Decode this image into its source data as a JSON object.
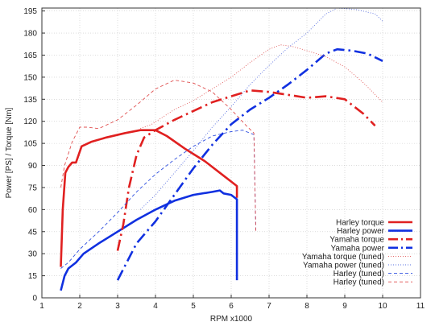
{
  "chart_data": {
    "type": "line",
    "xlabel": "RPM x1000",
    "ylabel": "Power [PS] / Torque [Nm]",
    "xlim": [
      1,
      11
    ],
    "ylim": [
      0,
      197
    ],
    "x_ticks": [
      1,
      2,
      3,
      4,
      5,
      6,
      7,
      8,
      9,
      10,
      11
    ],
    "y_ticks": [
      0,
      15,
      30,
      45,
      60,
      75,
      90,
      105,
      120,
      135,
      150,
      165,
      180,
      195
    ],
    "grid": true,
    "legend_position": "bottom-right",
    "series": [
      {
        "name": "Harley torque",
        "color": "#e02020",
        "style": "solid",
        "width": 2.6,
        "points": [
          [
            1.5,
            21
          ],
          [
            1.55,
            60
          ],
          [
            1.62,
            85
          ],
          [
            1.7,
            89
          ],
          [
            1.8,
            92
          ],
          [
            1.9,
            92
          ],
          [
            2.05,
            103
          ],
          [
            2.3,
            106
          ],
          [
            2.7,
            109
          ],
          [
            3.2,
            112
          ],
          [
            3.6,
            114
          ],
          [
            4.0,
            114
          ],
          [
            4.3,
            110
          ],
          [
            4.8,
            101
          ],
          [
            5.3,
            93
          ],
          [
            5.8,
            83
          ],
          [
            6.15,
            76
          ],
          [
            6.15,
            68
          ]
        ]
      },
      {
        "name": "Harley power",
        "color": "#1030e0",
        "style": "solid",
        "width": 2.6,
        "points": [
          [
            1.5,
            5
          ],
          [
            1.6,
            15
          ],
          [
            1.7,
            20
          ],
          [
            1.9,
            24
          ],
          [
            2.1,
            30
          ],
          [
            2.5,
            37
          ],
          [
            3.0,
            45
          ],
          [
            3.5,
            53
          ],
          [
            4.0,
            60
          ],
          [
            4.5,
            66
          ],
          [
            5.0,
            70
          ],
          [
            5.5,
            72
          ],
          [
            5.7,
            73
          ],
          [
            5.8,
            71
          ],
          [
            6.0,
            70
          ],
          [
            6.15,
            67
          ],
          [
            6.15,
            12
          ]
        ]
      },
      {
        "name": "Yamaha torque",
        "color": "#e02020",
        "style": "dashdot",
        "width": 2.6,
        "points": [
          [
            3.0,
            32
          ],
          [
            3.15,
            50
          ],
          [
            3.3,
            75
          ],
          [
            3.5,
            97
          ],
          [
            3.7,
            109
          ],
          [
            4.0,
            114
          ],
          [
            4.5,
            121
          ],
          [
            5.0,
            127
          ],
          [
            5.5,
            133
          ],
          [
            6.0,
            137
          ],
          [
            6.5,
            141
          ],
          [
            7.0,
            140
          ],
          [
            7.5,
            138
          ],
          [
            8.0,
            136
          ],
          [
            8.5,
            137
          ],
          [
            9.0,
            135
          ],
          [
            9.5,
            125
          ],
          [
            9.8,
            117
          ]
        ]
      },
      {
        "name": "Yamaha power",
        "color": "#1030e0",
        "style": "dashdot",
        "width": 2.6,
        "points": [
          [
            3.0,
            12
          ],
          [
            3.2,
            22
          ],
          [
            3.5,
            37
          ],
          [
            4.0,
            52
          ],
          [
            4.5,
            70
          ],
          [
            5.0,
            88
          ],
          [
            5.5,
            104
          ],
          [
            6.0,
            118
          ],
          [
            6.5,
            128
          ],
          [
            7.0,
            136
          ],
          [
            7.5,
            145
          ],
          [
            8.0,
            155
          ],
          [
            8.5,
            166
          ],
          [
            8.8,
            169
          ],
          [
            9.2,
            168
          ],
          [
            9.6,
            166
          ],
          [
            10.0,
            161
          ]
        ]
      },
      {
        "name": "Yamaha torque (tuned)",
        "color": "#e05a5a",
        "style": "dotted",
        "width": 0.9,
        "points": [
          [
            3.6,
            115
          ],
          [
            3.9,
            118
          ],
          [
            4.5,
            128
          ],
          [
            5.0,
            134
          ],
          [
            5.5,
            142
          ],
          [
            6.0,
            150
          ],
          [
            6.5,
            160
          ],
          [
            7.0,
            169
          ],
          [
            7.3,
            172
          ],
          [
            7.6,
            171
          ],
          [
            8.0,
            168
          ],
          [
            8.5,
            164
          ],
          [
            9.0,
            157
          ],
          [
            9.5,
            146
          ],
          [
            10.0,
            133
          ]
        ]
      },
      {
        "name": "Yamaha power (tuned)",
        "color": "#5a70e0",
        "style": "dotted",
        "width": 0.9,
        "points": [
          [
            3.6,
            60
          ],
          [
            4.0,
            70
          ],
          [
            4.5,
            85
          ],
          [
            5.0,
            100
          ],
          [
            5.5,
            116
          ],
          [
            6.0,
            130
          ],
          [
            6.5,
            145
          ],
          [
            7.0,
            158
          ],
          [
            7.5,
            170
          ],
          [
            8.0,
            180
          ],
          [
            8.5,
            193
          ],
          [
            8.8,
            197
          ],
          [
            9.3,
            196
          ],
          [
            9.8,
            193
          ],
          [
            10.0,
            188
          ]
        ]
      },
      {
        "name": "Harley (tuned)",
        "color": "#3050e0",
        "style": "dashed",
        "width": 0.9,
        "points": [
          [
            1.5,
            20
          ],
          [
            1.7,
            24
          ],
          [
            2.0,
            33
          ],
          [
            2.5,
            45
          ],
          [
            3.0,
            58
          ],
          [
            3.5,
            72
          ],
          [
            4.0,
            84
          ],
          [
            4.5,
            94
          ],
          [
            5.0,
            103
          ],
          [
            5.5,
            110
          ],
          [
            6.0,
            113
          ],
          [
            6.3,
            114
          ],
          [
            6.6,
            111
          ],
          [
            6.65,
            45
          ]
        ]
      },
      {
        "name": "Harley (tuned)",
        "color": "#e05050",
        "style": "dashed",
        "width": 0.9,
        "points": [
          [
            1.5,
            75
          ],
          [
            1.6,
            90
          ],
          [
            1.8,
            106
          ],
          [
            2.0,
            116
          ],
          [
            2.2,
            116
          ],
          [
            2.5,
            115
          ],
          [
            3.0,
            121
          ],
          [
            3.5,
            131
          ],
          [
            4.0,
            142
          ],
          [
            4.5,
            148
          ],
          [
            5.0,
            146
          ],
          [
            5.5,
            140
          ],
          [
            6.0,
            128
          ],
          [
            6.4,
            117
          ],
          [
            6.6,
            112
          ],
          [
            6.65,
            44
          ]
        ]
      }
    ]
  }
}
